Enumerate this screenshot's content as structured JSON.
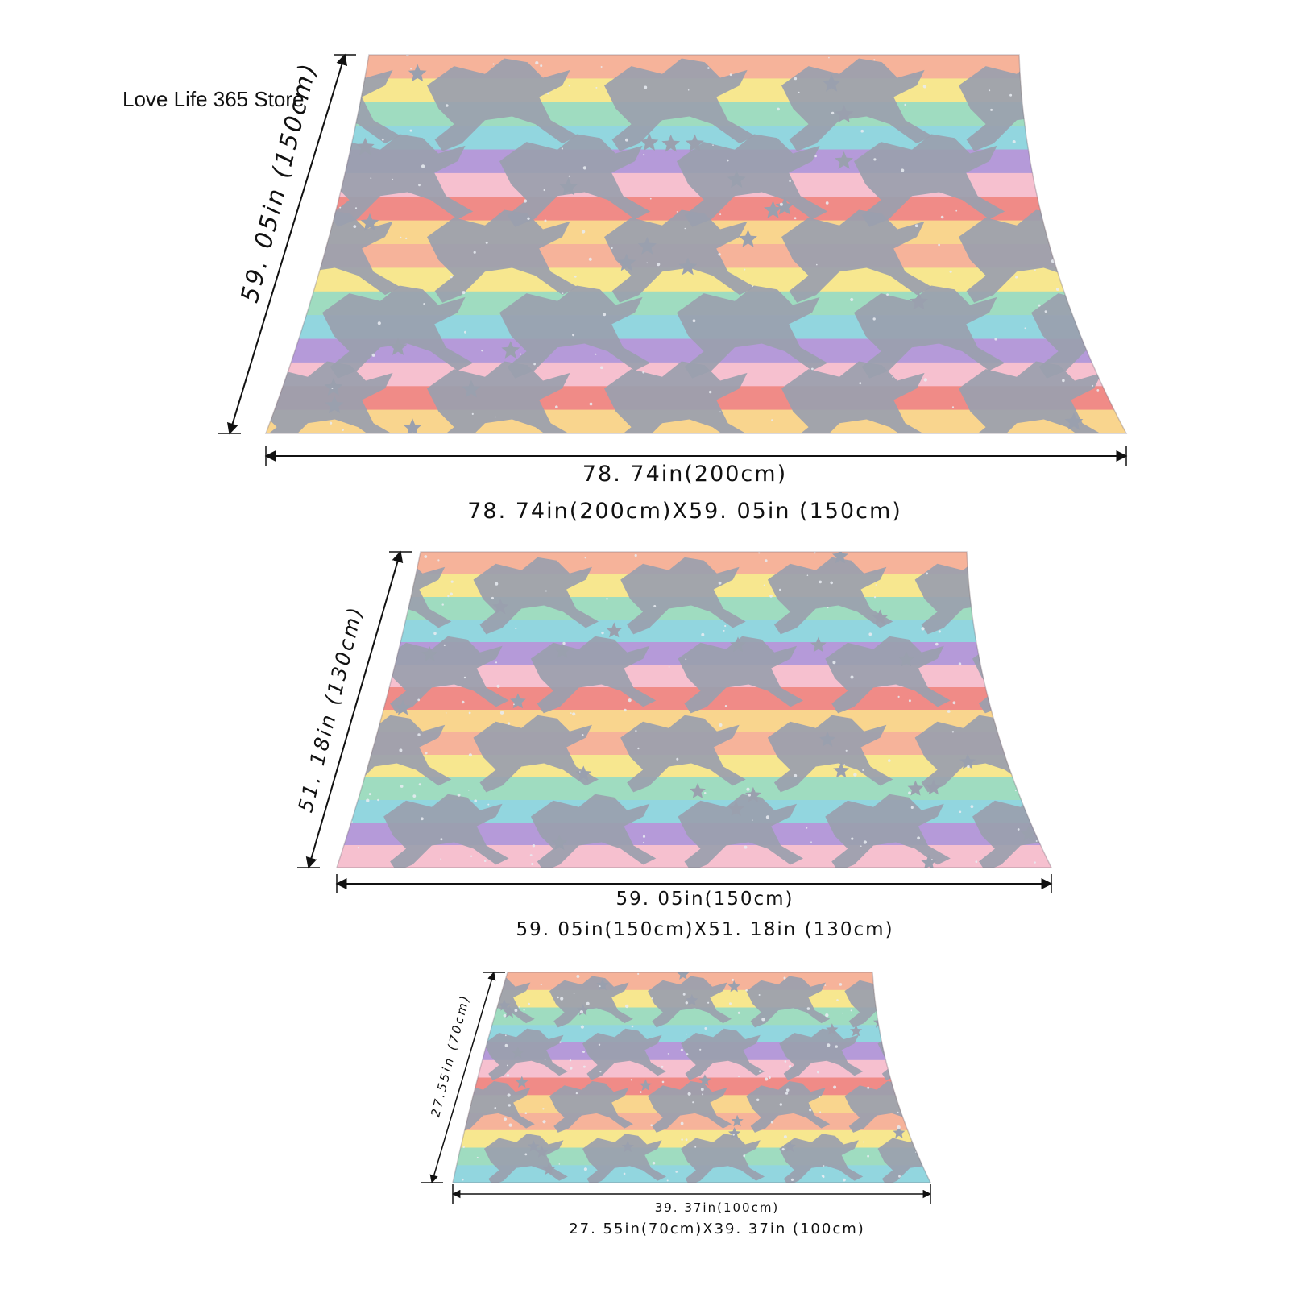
{
  "store_name": "Love Life 365 Store",
  "stripe_colors": [
    "#f6b39a",
    "#f7e78f",
    "#9fdcc0",
    "#92d6df",
    "#b59ad9",
    "#f6c0cf",
    "#f08b87",
    "#f9d58e"
  ],
  "glitter_color": "#9aa0ae",
  "products": [
    {
      "height_label": "59. 05in (150cm)",
      "width_label": "78. 74in(200cm)",
      "size_label": "78. 74in(200cm)X59. 05in (150cm)"
    },
    {
      "height_label": "51. 18in (130cm)",
      "width_label": "59. 05in(150cm)",
      "size_label": "59. 05in(150cm)X51. 18in (130cm)"
    },
    {
      "height_label": "27.55in (70cm)",
      "width_label": "39. 37in(100cm)",
      "size_label": "27. 55in(70cm)X39. 37in (100cm)"
    }
  ]
}
